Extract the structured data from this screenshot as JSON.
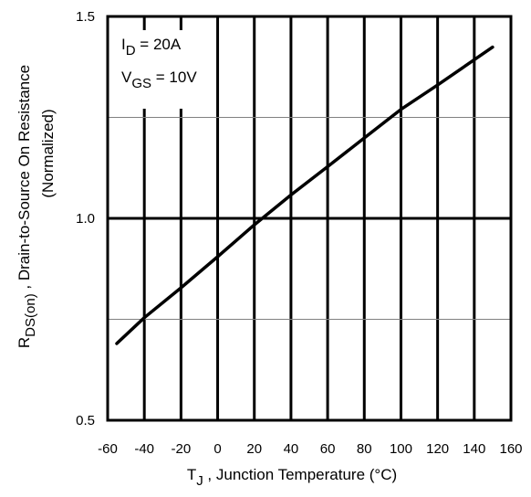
{
  "chart_data": {
    "type": "line",
    "title": "",
    "xlabel": "T",
    "xlabel_sub": "J",
    "xlabel_rest": " , Junction Temperature (°C)",
    "ylabel": "R",
    "ylabel_sub": "DS(on)",
    "ylabel_rest": " , Drain-to-Source On Resistance",
    "ylabel_line2": "(Normalized)",
    "xlim": [
      -60,
      160
    ],
    "ylim": [
      0.5,
      1.5
    ],
    "x_ticks": [
      -60,
      -40,
      -20,
      0,
      20,
      40,
      60,
      80,
      100,
      120,
      140,
      160
    ],
    "x_tick_labels": [
      "-60",
      "-40",
      "-20",
      "0",
      "20",
      "40",
      "60",
      "80",
      "100",
      "120",
      "140",
      "160"
    ],
    "y_ticks": [
      0.5,
      1.0,
      1.5
    ],
    "y_tick_labels": [
      "0.5",
      "1.0",
      "1.5"
    ],
    "y_major_gridlines": [
      1.0
    ],
    "y_minor_gridlines": [
      0.75,
      1.25
    ],
    "grid": true,
    "annotations": [
      {
        "main": "I",
        "sub": "D",
        "rest": " = 20A"
      },
      {
        "main": "V",
        "sub": "GS",
        "rest": " = 10V"
      }
    ],
    "series": [
      {
        "x": [
          -55,
          -40,
          -20,
          0,
          20,
          40,
          60,
          80,
          100,
          120,
          150
        ],
        "y": [
          0.69,
          0.754,
          0.828,
          0.905,
          0.984,
          1.058,
          1.128,
          1.199,
          1.27,
          1.33,
          1.424
        ]
      }
    ]
  },
  "colors": {
    "line": "#000000",
    "frame": "#000000",
    "minor_grid": "#808080",
    "background": "#ffffff"
  }
}
